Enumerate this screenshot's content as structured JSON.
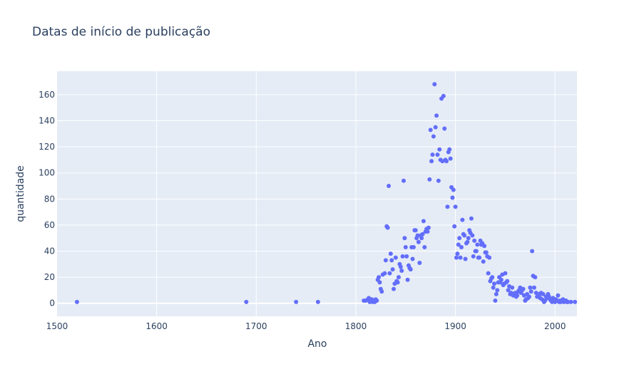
{
  "chart_data": {
    "type": "scatter",
    "title": "Datas de início de publicação",
    "xlabel": "Ano",
    "ylabel": "quantidade",
    "xlim": [
      1500,
      2022
    ],
    "ylim": [
      -10,
      178
    ],
    "x_ticks": [
      1500,
      1600,
      1700,
      1800,
      1900,
      2000
    ],
    "y_ticks": [
      0,
      20,
      40,
      60,
      80,
      100,
      120,
      140,
      160
    ],
    "grid": true,
    "colors": {
      "marker": "#636efa",
      "plot_bg": "#e5ecf6",
      "grid": "#ffffff",
      "text": "#2a3f5f"
    },
    "points": [
      [
        1520,
        1
      ],
      [
        1690,
        1
      ],
      [
        1740,
        1
      ],
      [
        1762,
        1
      ],
      [
        1808,
        2
      ],
      [
        1810,
        2
      ],
      [
        1812,
        3
      ],
      [
        1813,
        4
      ],
      [
        1814,
        1
      ],
      [
        1815,
        2
      ],
      [
        1816,
        3
      ],
      [
        1817,
        1
      ],
      [
        1818,
        2
      ],
      [
        1819,
        1
      ],
      [
        1820,
        3
      ],
      [
        1821,
        2
      ],
      [
        1822,
        18
      ],
      [
        1823,
        20
      ],
      [
        1824,
        16
      ],
      [
        1825,
        11
      ],
      [
        1826,
        9
      ],
      [
        1827,
        22
      ],
      [
        1829,
        23
      ],
      [
        1830,
        33
      ],
      [
        1831,
        59
      ],
      [
        1832,
        58
      ],
      [
        1833,
        90
      ],
      [
        1834,
        23
      ],
      [
        1835,
        38
      ],
      [
        1836,
        33
      ],
      [
        1837,
        26
      ],
      [
        1838,
        11
      ],
      [
        1839,
        15
      ],
      [
        1840,
        35
      ],
      [
        1841,
        17
      ],
      [
        1842,
        16
      ],
      [
        1843,
        20
      ],
      [
        1844,
        30
      ],
      [
        1845,
        28
      ],
      [
        1846,
        25
      ],
      [
        1847,
        36
      ],
      [
        1848,
        94
      ],
      [
        1849,
        50
      ],
      [
        1850,
        43
      ],
      [
        1851,
        36
      ],
      [
        1852,
        18
      ],
      [
        1853,
        29
      ],
      [
        1854,
        27
      ],
      [
        1855,
        26
      ],
      [
        1856,
        43
      ],
      [
        1857,
        34
      ],
      [
        1858,
        43
      ],
      [
        1859,
        56
      ],
      [
        1860,
        56
      ],
      [
        1861,
        50
      ],
      [
        1862,
        52
      ],
      [
        1863,
        47
      ],
      [
        1864,
        31
      ],
      [
        1865,
        52
      ],
      [
        1866,
        50
      ],
      [
        1867,
        53
      ],
      [
        1868,
        63
      ],
      [
        1869,
        43
      ],
      [
        1870,
        55
      ],
      [
        1871,
        57
      ],
      [
        1872,
        55
      ],
      [
        1873,
        58
      ],
      [
        1874,
        95
      ],
      [
        1875,
        133
      ],
      [
        1876,
        109
      ],
      [
        1877,
        114
      ],
      [
        1878,
        128
      ],
      [
        1879,
        168
      ],
      [
        1880,
        135
      ],
      [
        1881,
        144
      ],
      [
        1882,
        114
      ],
      [
        1883,
        94
      ],
      [
        1884,
        118
      ],
      [
        1885,
        110
      ],
      [
        1886,
        157
      ],
      [
        1887,
        109
      ],
      [
        1888,
        159
      ],
      [
        1889,
        134
      ],
      [
        1890,
        110
      ],
      [
        1891,
        109
      ],
      [
        1892,
        74
      ],
      [
        1893,
        116
      ],
      [
        1894,
        118
      ],
      [
        1895,
        111
      ],
      [
        1896,
        89
      ],
      [
        1897,
        81
      ],
      [
        1898,
        87
      ],
      [
        1899,
        59
      ],
      [
        1900,
        74
      ],
      [
        1901,
        35
      ],
      [
        1902,
        38
      ],
      [
        1903,
        45
      ],
      [
        1904,
        50
      ],
      [
        1905,
        35
      ],
      [
        1906,
        43
      ],
      [
        1907,
        64
      ],
      [
        1908,
        53
      ],
      [
        1909,
        52
      ],
      [
        1910,
        34
      ],
      [
        1911,
        46
      ],
      [
        1912,
        47
      ],
      [
        1913,
        50
      ],
      [
        1914,
        56
      ],
      [
        1915,
        54
      ],
      [
        1916,
        65
      ],
      [
        1917,
        52
      ],
      [
        1918,
        36
      ],
      [
        1919,
        48
      ],
      [
        1920,
        40
      ],
      [
        1921,
        40
      ],
      [
        1922,
        45
      ],
      [
        1923,
        35
      ],
      [
        1924,
        35
      ],
      [
        1925,
        48
      ],
      [
        1926,
        45
      ],
      [
        1927,
        46
      ],
      [
        1928,
        32
      ],
      [
        1929,
        44
      ],
      [
        1930,
        39
      ],
      [
        1931,
        39
      ],
      [
        1932,
        36
      ],
      [
        1933,
        23
      ],
      [
        1934,
        35
      ],
      [
        1935,
        17
      ],
      [
        1936,
        19
      ],
      [
        1937,
        20
      ],
      [
        1938,
        12
      ],
      [
        1939,
        15
      ],
      [
        1940,
        2
      ],
      [
        1941,
        7
      ],
      [
        1942,
        10
      ],
      [
        1943,
        16
      ],
      [
        1944,
        20
      ],
      [
        1945,
        16
      ],
      [
        1946,
        18
      ],
      [
        1947,
        22
      ],
      [
        1948,
        14
      ],
      [
        1949,
        15
      ],
      [
        1950,
        23
      ],
      [
        1951,
        16
      ],
      [
        1952,
        17
      ],
      [
        1953,
        10
      ],
      [
        1954,
        13
      ],
      [
        1955,
        7
      ],
      [
        1956,
        8
      ],
      [
        1957,
        12
      ],
      [
        1958,
        6
      ],
      [
        1959,
        7
      ],
      [
        1960,
        8
      ],
      [
        1961,
        5
      ],
      [
        1962,
        6
      ],
      [
        1963,
        9
      ],
      [
        1964,
        10
      ],
      [
        1965,
        12
      ],
      [
        1966,
        8
      ],
      [
        1967,
        10
      ],
      [
        1968,
        11
      ],
      [
        1969,
        6
      ],
      [
        1970,
        2
      ],
      [
        1971,
        3
      ],
      [
        1972,
        7
      ],
      [
        1973,
        4
      ],
      [
        1974,
        5
      ],
      [
        1975,
        12
      ],
      [
        1976,
        9
      ],
      [
        1977,
        40
      ],
      [
        1978,
        21
      ],
      [
        1979,
        12
      ],
      [
        1980,
        20
      ],
      [
        1981,
        8
      ],
      [
        1982,
        5
      ],
      [
        1983,
        7
      ],
      [
        1984,
        6
      ],
      [
        1985,
        4
      ],
      [
        1986,
        8
      ],
      [
        1987,
        3
      ],
      [
        1988,
        7
      ],
      [
        1989,
        1
      ],
      [
        1990,
        2
      ],
      [
        1991,
        5
      ],
      [
        1992,
        4
      ],
      [
        1993,
        7
      ],
      [
        1994,
        5
      ],
      [
        1995,
        3
      ],
      [
        1996,
        2
      ],
      [
        1997,
        1
      ],
      [
        1998,
        4
      ],
      [
        1999,
        2
      ],
      [
        2000,
        1
      ],
      [
        2001,
        3
      ],
      [
        2002,
        2
      ],
      [
        2003,
        6
      ],
      [
        2004,
        1
      ],
      [
        2005,
        2
      ],
      [
        2006,
        1
      ],
      [
        2007,
        2
      ],
      [
        2008,
        3
      ],
      [
        2009,
        1
      ],
      [
        2010,
        2
      ],
      [
        2011,
        2
      ],
      [
        2012,
        1
      ],
      [
        2013,
        1
      ],
      [
        2016,
        1
      ],
      [
        2020,
        1
      ]
    ]
  }
}
